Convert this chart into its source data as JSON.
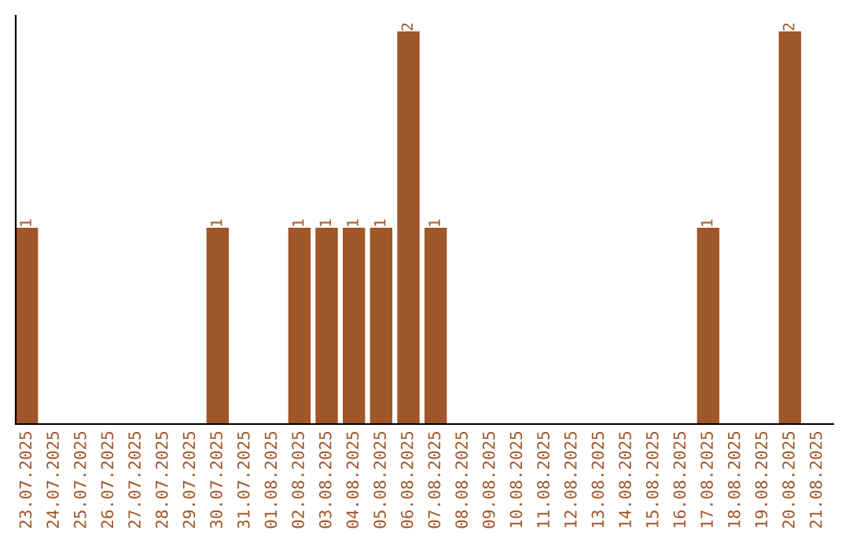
{
  "chart_data": {
    "type": "bar",
    "categories": [
      "23.07.2025",
      "24.07.2025",
      "25.07.2025",
      "26.07.2025",
      "27.07.2025",
      "28.07.2025",
      "29.07.2025",
      "30.07.2025",
      "31.07.2025",
      "01.08.2025",
      "02.08.2025",
      "03.08.2025",
      "04.08.2025",
      "05.08.2025",
      "06.08.2025",
      "07.08.2025",
      "08.08.2025",
      "09.08.2025",
      "10.08.2025",
      "11.08.2025",
      "12.08.2025",
      "13.08.2025",
      "14.08.2025",
      "15.08.2025",
      "16.08.2025",
      "17.08.2025",
      "18.08.2025",
      "19.08.2025",
      "20.08.2025",
      "21.08.2025"
    ],
    "values": [
      1,
      0,
      0,
      0,
      0,
      0,
      0,
      1,
      0,
      0,
      1,
      1,
      1,
      1,
      2,
      1,
      0,
      0,
      0,
      0,
      0,
      0,
      0,
      0,
      0,
      1,
      0,
      0,
      2,
      0
    ],
    "value_labels": [
      "1",
      null,
      null,
      null,
      null,
      null,
      null,
      "1",
      null,
      null,
      "1",
      "1",
      "1",
      "1",
      "2",
      "1",
      null,
      null,
      null,
      null,
      null,
      null,
      null,
      null,
      null,
      "1",
      null,
      null,
      "2",
      null
    ],
    "color": "#a0572a",
    "grid": false,
    "legend": false,
    "tick_labels": "x"
  }
}
